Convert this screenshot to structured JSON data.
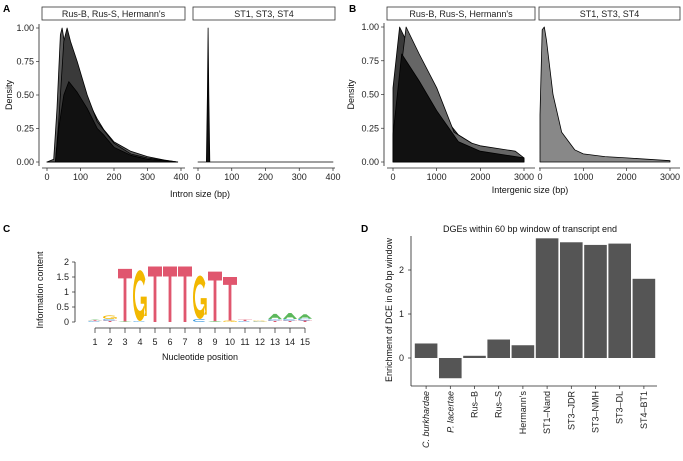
{
  "panels": {
    "a": "A",
    "b": "B",
    "c": "C",
    "d": "D"
  },
  "chart_data": [
    {
      "type": "area",
      "panel": "A",
      "xlabel": "Intron size (bp)",
      "ylabel": "Density",
      "xlim": [
        0,
        400
      ],
      "ylim": [
        0,
        1
      ],
      "xticks": [
        "0",
        "100",
        "200",
        "300",
        "400"
      ],
      "yticks": [
        "0.00",
        "0.25",
        "0.50",
        "0.75",
        "1.00"
      ],
      "facets": [
        {
          "label": "Rus-B, Rus-S, Hermann's",
          "series": [
            {
              "color": "#5a5a5a",
              "x": [
                0,
                20,
                30,
                40,
                45,
                55,
                70,
                90,
                120,
                150,
                170,
                200,
                250,
                300,
                350,
                390
              ],
              "y": [
                0,
                0.02,
                0.4,
                0.95,
                1,
                0.85,
                0.72,
                0.62,
                0.47,
                0.32,
                0.24,
                0.15,
                0.08,
                0.04,
                0.015,
                0
              ]
            },
            {
              "color": "#3a3a3a",
              "x": [
                0,
                25,
                35,
                50,
                60,
                70,
                90,
                120,
                150,
                200,
                250,
                300,
                390
              ],
              "y": [
                0,
                0,
                0.3,
                0.9,
                1,
                0.9,
                0.75,
                0.5,
                0.3,
                0.14,
                0.06,
                0.03,
                0
              ]
            },
            {
              "color": "#111111",
              "x": [
                0,
                25,
                35,
                50,
                65,
                90,
                120,
                150,
                170,
                200,
                250,
                300,
                390
              ],
              "y": [
                0,
                0,
                0.25,
                0.5,
                0.6,
                0.52,
                0.4,
                0.25,
                0.2,
                0.11,
                0.05,
                0.02,
                0
              ]
            }
          ]
        },
        {
          "label": "ST1, ST3, ST4",
          "series": [
            {
              "color": "#111111",
              "x": [
                0,
                25,
                28,
                30,
                32,
                35,
                400
              ],
              "y": [
                0,
                0,
                0.5,
                1,
                0.5,
                0,
                0
              ]
            }
          ]
        }
      ]
    },
    {
      "type": "area",
      "panel": "B",
      "xlabel": "Intergenic size (bp)",
      "ylabel": "Density",
      "xlim": [
        0,
        3000
      ],
      "ylim": [
        0,
        1
      ],
      "xticks": [
        "0",
        "1000",
        "2000",
        "3000"
      ],
      "yticks": [
        "0.00",
        "0.25",
        "0.50",
        "0.75",
        "1.00"
      ],
      "facets": [
        {
          "label": "Rus-B, Rus-S, Hermann's",
          "series": [
            {
              "color": "#3a3a3a",
              "x": [
                0,
                150,
                300,
                600,
                1000,
                1500,
                2000,
                2500,
                3000
              ],
              "y": [
                0.55,
                1,
                0.9,
                0.65,
                0.4,
                0.2,
                0.1,
                0.06,
                0.02
              ]
            },
            {
              "color": "#666666",
              "x": [
                0,
                300,
                600,
                1000,
                1400,
                1500,
                1800,
                2000,
                2800,
                3000
              ],
              "y": [
                0.2,
                1,
                0.8,
                0.55,
                0.22,
                0.2,
                0.14,
                0.12,
                0.08,
                0.03
              ]
            },
            {
              "color": "#111111",
              "x": [
                0,
                200,
                600,
                1000,
                1500,
                2000,
                3000
              ],
              "y": [
                0.2,
                0.8,
                0.6,
                0.38,
                0.15,
                0.08,
                0.03
              ]
            }
          ]
        },
        {
          "label": "ST1, ST3, ST4",
          "series": [
            {
              "color": "#888888",
              "x": [
                0,
                50,
                100,
                150,
                300,
                500,
                800,
                1000,
                1500,
                2000,
                3000
              ],
              "y": [
                0.35,
                0.98,
                1,
                0.9,
                0.5,
                0.22,
                0.09,
                0.06,
                0.04,
                0.03,
                0.01
              ]
            }
          ]
        }
      ]
    },
    {
      "type": "sequence-logo",
      "panel": "C",
      "xlabel": "Nucleotide position",
      "ylabel": "Information content",
      "ylim": [
        0,
        2
      ],
      "yticks": [
        "0",
        "0.5",
        "1",
        "1.5",
        "2"
      ],
      "positions": [
        "1",
        "2",
        "3",
        "4",
        "5",
        "6",
        "7",
        "8",
        "9",
        "10",
        "11",
        "12",
        "13",
        "14",
        "15"
      ],
      "colors": {
        "A": "#5cb85c",
        "C": "#3d9be0",
        "G": "#f2b800",
        "T": "#e0566e"
      },
      "stacks": [
        [
          [
            "C",
            0.03
          ],
          [
            "T",
            0.03
          ],
          [
            "A",
            0.02
          ]
        ],
        [
          [
            "T",
            0.04
          ],
          [
            "C",
            0.06
          ],
          [
            "G",
            0.12
          ]
        ],
        [
          [
            "A",
            0.02
          ],
          [
            "T",
            1.75
          ]
        ],
        [
          [
            "C",
            0.03
          ],
          [
            "G",
            1.7
          ]
        ],
        [
          [
            "T",
            1.85
          ]
        ],
        [
          [
            "T",
            1.85
          ]
        ],
        [
          [
            "T",
            1.85
          ]
        ],
        [
          [
            "C",
            0.1
          ],
          [
            "G",
            1.45
          ]
        ],
        [
          [
            "A",
            0.03
          ],
          [
            "T",
            1.65
          ]
        ],
        [
          [
            "G",
            0.05
          ],
          [
            "T",
            1.45
          ]
        ],
        [
          [
            "C",
            0.03
          ],
          [
            "T",
            0.05
          ]
        ],
        [
          [
            "C",
            0.02
          ],
          [
            "G",
            0.03
          ]
        ],
        [
          [
            "T",
            0.04
          ],
          [
            "C",
            0.05
          ],
          [
            "A",
            0.18
          ]
        ],
        [
          [
            "T",
            0.04
          ],
          [
            "C",
            0.06
          ],
          [
            "A",
            0.2
          ]
        ],
        [
          [
            "T",
            0.05
          ],
          [
            "C",
            0.06
          ],
          [
            "A",
            0.15
          ]
        ]
      ]
    },
    {
      "type": "bar",
      "panel": "D",
      "title": "DGEs within 60 bp window of transcript end",
      "xlabel": "",
      "ylabel": "Enrichment of DCE in 60 bp window",
      "ylim": [
        -0.6,
        2.85
      ],
      "yticks": [
        "0",
        "1",
        "2"
      ],
      "categories": [
        "C. burkhardae",
        "P. lacertae",
        "Rus–B",
        "Rus–S",
        "Hermann's",
        "ST1–Nand",
        "ST3–JDR",
        "ST3–NMH",
        "ST3–DL",
        "ST4–BT1"
      ],
      "italic": [
        true,
        true,
        false,
        false,
        false,
        false,
        false,
        false,
        false,
        false
      ],
      "values": [
        0.33,
        -0.46,
        0.05,
        0.42,
        0.29,
        2.72,
        2.63,
        2.57,
        2.6,
        1.8
      ],
      "color": "#555555"
    }
  ]
}
